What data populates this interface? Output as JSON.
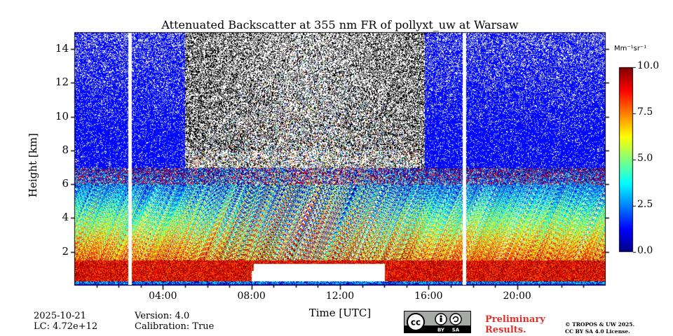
{
  "chart_data": {
    "type": "heatmap",
    "title": "Attenuated Backscatter at 355 nm FR of pollyxt_uw at Warsaw",
    "xlabel": "Time [UTC]",
    "ylabel": "Height [km]",
    "x_ticks": [
      "04:00",
      "08:00",
      "12:00",
      "16:00",
      "20:00"
    ],
    "x_tick_hours": [
      4,
      8,
      12,
      16,
      20
    ],
    "xlim_hours": [
      0,
      24
    ],
    "y_ticks": [
      "2",
      "4",
      "6",
      "8",
      "10",
      "12",
      "14"
    ],
    "y_tick_values": [
      2,
      4,
      6,
      8,
      10,
      12,
      14
    ],
    "ylim": [
      0,
      15
    ],
    "colorbar": {
      "unit": "Mm⁻¹sr⁻¹",
      "ticks": [
        "0.0",
        "2.5",
        "5.0",
        "7.5",
        "10.0"
      ],
      "tick_values": [
        0,
        2.5,
        5,
        7.5,
        10
      ],
      "range": [
        0,
        10
      ],
      "colormap": "jet"
    },
    "data_gaps_hours": [
      2.5,
      17.6
    ]
  },
  "meta": {
    "date": "2025-10-21",
    "lc": "LC: 4.72e+12",
    "version": "Version: 4.0",
    "calibration": "Calibration: True"
  },
  "license": {
    "preliminary_line1": "Preliminary",
    "preliminary_line2": "Results.",
    "copyright_line1": "© TROPOS & UW 2025.",
    "copyright_line2": "CC BY SA 4.0 License.",
    "badge_left": "cc",
    "badge_by": "BY",
    "badge_sa": "SA"
  }
}
